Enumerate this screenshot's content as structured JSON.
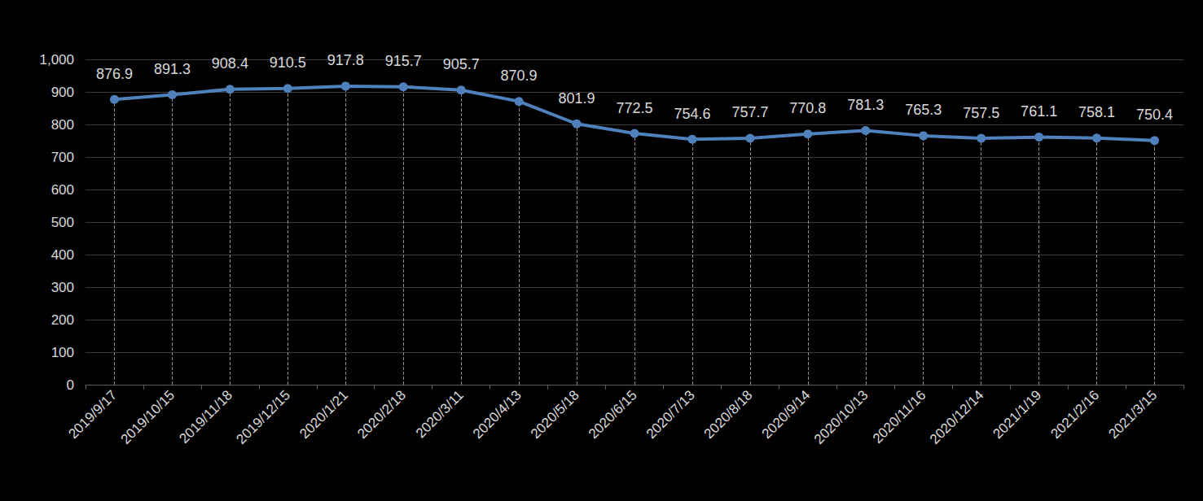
{
  "chart_data": {
    "type": "line",
    "categories": [
      "2019/9/17",
      "2019/10/15",
      "2019/11/18",
      "2019/12/15",
      "2020/1/21",
      "2020/2/18",
      "2020/3/11",
      "2020/4/13",
      "2020/5/18",
      "2020/6/15",
      "2020/7/13",
      "2020/8/18",
      "2020/9/14",
      "2020/10/13",
      "2020/11/16",
      "2020/12/14",
      "2021/1/19",
      "2021/2/16",
      "2021/3/15"
    ],
    "values": [
      876.9,
      891.3,
      908.4,
      910.5,
      917.8,
      915.7,
      905.7,
      870.9,
      801.9,
      772.5,
      754.6,
      757.7,
      770.8,
      781.3,
      765.3,
      757.5,
      761.1,
      758.1,
      750.4
    ],
    "color": "#4f81bd",
    "marker": "circle",
    "ylim": [
      0,
      1000
    ],
    "yticks": [
      0,
      100,
      200,
      300,
      400,
      500,
      600,
      700,
      800,
      900,
      1000
    ],
    "grid": true,
    "data_labels": true
  }
}
